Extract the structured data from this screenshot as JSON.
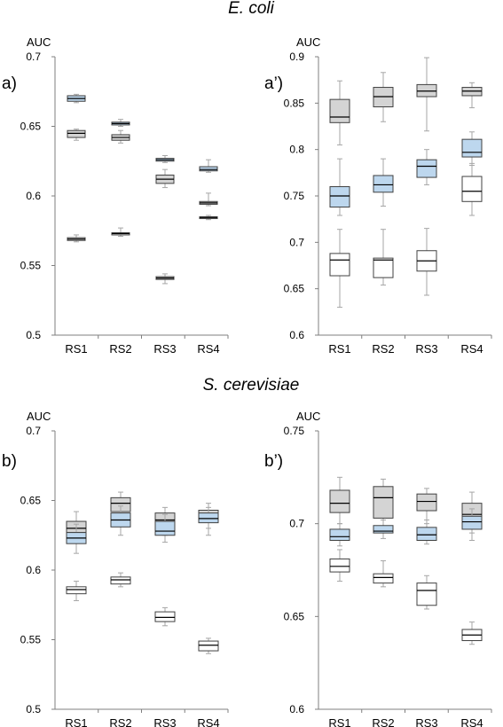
{
  "sections": [
    {
      "title": "E. coli"
    },
    {
      "title": "S. cerevisiae"
    }
  ],
  "colors": {
    "gray": "#d4d4d4",
    "blue": "#bdd7ee",
    "white": "#ffffff",
    "stroke": "#404040",
    "whisker": "#a6a6a6"
  },
  "chart_data": [
    {
      "type": "box",
      "panel_label": "a)",
      "ylabel": "AUC",
      "ylim": [
        0.5,
        0.7
      ],
      "yticks": [
        "0.5",
        "0.55",
        "0.6",
        "0.65",
        "0.7"
      ],
      "categories": [
        "RS1",
        "RS2",
        "RS3",
        "RS4"
      ],
      "series": [
        {
          "fill": "blue",
          "boxes": [
            {
              "min": 0.667,
              "q1": 0.668,
              "median": 0.67,
              "q3": 0.672,
              "max": 0.673
            },
            {
              "min": 0.65,
              "q1": 0.651,
              "median": 0.652,
              "q3": 0.653,
              "max": 0.655
            },
            {
              "min": 0.624,
              "q1": 0.625,
              "median": 0.626,
              "q3": 0.627,
              "max": 0.629
            },
            {
              "min": 0.617,
              "q1": 0.618,
              "median": 0.619,
              "q3": 0.621,
              "max": 0.626
            }
          ]
        },
        {
          "fill": "gray",
          "boxes": [
            {
              "min": 0.64,
              "q1": 0.642,
              "median": 0.645,
              "q3": 0.647,
              "max": 0.648
            },
            {
              "min": 0.638,
              "q1": 0.64,
              "median": 0.642,
              "q3": 0.644,
              "max": 0.647
            },
            {
              "min": 0.606,
              "q1": 0.609,
              "median": 0.612,
              "q3": 0.615,
              "max": 0.619
            },
            {
              "min": 0.593,
              "q1": 0.594,
              "median": 0.595,
              "q3": 0.596,
              "max": 0.602
            }
          ]
        },
        {
          "fill": "gray",
          "boxes": [
            {
              "min": 0.567,
              "q1": 0.568,
              "median": 0.569,
              "q3": 0.57,
              "max": 0.572
            },
            {
              "min": 0.571,
              "q1": 0.572,
              "median": 0.573,
              "q3": 0.5735,
              "max": 0.577
            },
            {
              "min": 0.537,
              "q1": 0.54,
              "median": 0.541,
              "q3": 0.542,
              "max": 0.544
            },
            {
              "min": 0.583,
              "q1": 0.584,
              "median": 0.5845,
              "q3": 0.585,
              "max": 0.586
            }
          ]
        }
      ]
    },
    {
      "type": "box",
      "panel_label": "a’)",
      "ylabel": "AUC",
      "ylim": [
        0.6,
        0.9
      ],
      "yticks": [
        "0.6",
        "0.65",
        "0.7",
        "0.75",
        "0.8",
        "0.85",
        "0.9"
      ],
      "categories": [
        "RS1",
        "RS2",
        "RS3",
        "RS4"
      ],
      "series": [
        {
          "fill": "gray",
          "boxes": [
            {
              "min": 0.805,
              "q1": 0.829,
              "median": 0.835,
              "q3": 0.854,
              "max": 0.874
            },
            {
              "min": 0.83,
              "q1": 0.846,
              "median": 0.857,
              "q3": 0.867,
              "max": 0.883
            },
            {
              "min": 0.82,
              "q1": 0.857,
              "median": 0.863,
              "q3": 0.87,
              "max": 0.899
            },
            {
              "min": 0.845,
              "q1": 0.858,
              "median": 0.863,
              "q3": 0.867,
              "max": 0.872
            }
          ]
        },
        {
          "fill": "blue",
          "boxes": [
            {
              "min": 0.729,
              "q1": 0.738,
              "median": 0.75,
              "q3": 0.76,
              "max": 0.79
            },
            {
              "min": 0.739,
              "q1": 0.754,
              "median": 0.762,
              "q3": 0.772,
              "max": 0.79
            },
            {
              "min": 0.762,
              "q1": 0.77,
              "median": 0.782,
              "q3": 0.789,
              "max": 0.8
            },
            {
              "min": 0.783,
              "q1": 0.792,
              "median": 0.797,
              "q3": 0.811,
              "max": 0.819
            }
          ]
        },
        {
          "fill": "white",
          "boxes": [
            {
              "min": 0.63,
              "q1": 0.664,
              "median": 0.681,
              "q3": 0.688,
              "max": 0.714
            },
            {
              "min": 0.654,
              "q1": 0.662,
              "median": 0.681,
              "q3": 0.683,
              "max": 0.714
            },
            {
              "min": 0.643,
              "q1": 0.669,
              "median": 0.68,
              "q3": 0.691,
              "max": 0.715
            },
            {
              "min": 0.729,
              "q1": 0.744,
              "median": 0.755,
              "q3": 0.771,
              "max": 0.785
            }
          ]
        }
      ]
    },
    {
      "type": "box",
      "panel_label": "b)",
      "ylabel": "AUC",
      "ylim": [
        0.5,
        0.7
      ],
      "yticks": [
        "0.5",
        "0.55",
        "0.6",
        "0.65",
        "0.7"
      ],
      "categories": [
        "RS1",
        "RS2",
        "RS3",
        "RS4"
      ],
      "series": [
        {
          "fill": "gray",
          "boxes": [
            {
              "min": 0.62,
              "q1": 0.627,
              "median": 0.63,
              "q3": 0.635,
              "max": 0.642
            },
            {
              "min": 0.635,
              "q1": 0.642,
              "median": 0.648,
              "q3": 0.652,
              "max": 0.656
            },
            {
              "min": 0.625,
              "q1": 0.63,
              "median": 0.636,
              "q3": 0.641,
              "max": 0.645
            },
            {
              "min": 0.625,
              "q1": 0.635,
              "median": 0.638,
              "q3": 0.643,
              "max": 0.648
            }
          ]
        },
        {
          "fill": "blue",
          "boxes": [
            {
              "min": 0.612,
              "q1": 0.619,
              "median": 0.623,
              "q3": 0.627,
              "max": 0.633
            },
            {
              "min": 0.625,
              "q1": 0.631,
              "median": 0.636,
              "q3": 0.641,
              "max": 0.646
            },
            {
              "min": 0.62,
              "q1": 0.625,
              "median": 0.628,
              "q3": 0.635,
              "max": 0.64
            },
            {
              "min": 0.63,
              "q1": 0.634,
              "median": 0.637,
              "q3": 0.641,
              "max": 0.645
            }
          ]
        },
        {
          "fill": "white",
          "boxes": [
            {
              "min": 0.578,
              "q1": 0.583,
              "median": 0.586,
              "q3": 0.588,
              "max": 0.592
            },
            {
              "min": 0.588,
              "q1": 0.59,
              "median": 0.593,
              "q3": 0.595,
              "max": 0.598
            },
            {
              "min": 0.56,
              "q1": 0.563,
              "median": 0.566,
              "q3": 0.57,
              "max": 0.573
            },
            {
              "min": 0.54,
              "q1": 0.542,
              "median": 0.546,
              "q3": 0.549,
              "max": 0.551
            }
          ]
        }
      ]
    },
    {
      "type": "box",
      "panel_label": "b’)",
      "ylabel": "AUC",
      "ylim": [
        0.6,
        0.75
      ],
      "yticks": [
        "0.6",
        "0.65",
        "0.7",
        "0.75"
      ],
      "categories": [
        "RS1",
        "RS2",
        "RS3",
        "RS4"
      ],
      "series": [
        {
          "fill": "gray",
          "boxes": [
            {
              "min": 0.7,
              "q1": 0.706,
              "median": 0.711,
              "q3": 0.718,
              "max": 0.725
            },
            {
              "min": 0.697,
              "q1": 0.703,
              "median": 0.714,
              "q3": 0.72,
              "max": 0.724
            },
            {
              "min": 0.7,
              "q1": 0.707,
              "median": 0.712,
              "q3": 0.716,
              "max": 0.719
            },
            {
              "min": 0.695,
              "q1": 0.7,
              "median": 0.705,
              "q3": 0.711,
              "max": 0.717
            }
          ]
        },
        {
          "fill": "blue",
          "boxes": [
            {
              "min": 0.688,
              "q1": 0.691,
              "median": 0.693,
              "q3": 0.697,
              "max": 0.7
            },
            {
              "min": 0.692,
              "q1": 0.695,
              "median": 0.696,
              "q3": 0.699,
              "max": 0.702
            },
            {
              "min": 0.689,
              "q1": 0.691,
              "median": 0.694,
              "q3": 0.698,
              "max": 0.702
            },
            {
              "min": 0.691,
              "q1": 0.697,
              "median": 0.701,
              "q3": 0.704,
              "max": 0.708
            }
          ]
        },
        {
          "fill": "white",
          "boxes": [
            {
              "min": 0.669,
              "q1": 0.674,
              "median": 0.677,
              "q3": 0.681,
              "max": 0.686
            },
            {
              "min": 0.666,
              "q1": 0.668,
              "median": 0.671,
              "q3": 0.673,
              "max": 0.68
            },
            {
              "min": 0.654,
              "q1": 0.656,
              "median": 0.664,
              "q3": 0.668,
              "max": 0.672
            },
            {
              "min": 0.635,
              "q1": 0.637,
              "median": 0.64,
              "q3": 0.643,
              "max": 0.647
            }
          ]
        }
      ]
    }
  ]
}
